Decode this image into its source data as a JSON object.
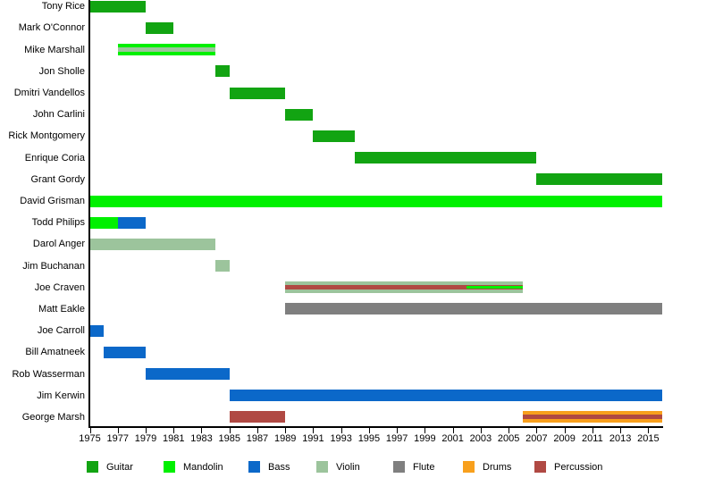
{
  "chart_data": {
    "type": "bar",
    "subtype": "timeline-gantt",
    "title": "",
    "xlabel": "",
    "ylabel": "",
    "grid": false,
    "legend_position": "bottom",
    "x_axis": {
      "min": 1975,
      "max": 2016,
      "tick_step": 2,
      "ticks": [
        1975,
        1977,
        1979,
        1981,
        1983,
        1985,
        1987,
        1989,
        1991,
        1993,
        1995,
        1997,
        1999,
        2001,
        2003,
        2005,
        2007,
        2009,
        2011,
        2013,
        2015
      ]
    },
    "instrument_colors": {
      "guitar": "#12a412",
      "mandolin": "#00f000",
      "bass": "#0b68c9",
      "violin": "#9cc49c",
      "flute": "#7f7f7f",
      "drums": "#f8a01d",
      "percussion": "#b04943"
    },
    "legend": [
      {
        "label": "Guitar",
        "instrument": "guitar"
      },
      {
        "label": "Mandolin",
        "instrument": "mandolin"
      },
      {
        "label": "Bass",
        "instrument": "bass"
      },
      {
        "label": "Violin",
        "instrument": "violin"
      },
      {
        "label": "Flute",
        "instrument": "flute"
      },
      {
        "label": "Drums",
        "instrument": "drums"
      },
      {
        "label": "Percussion",
        "instrument": "percussion"
      }
    ],
    "rows": [
      {
        "name": "Tony Rice",
        "bars": [
          {
            "start": 1975,
            "end": 1979,
            "instrument": "guitar",
            "layer": "full"
          }
        ]
      },
      {
        "name": "Mark O'Connor",
        "bars": [
          {
            "start": 1979,
            "end": 1981,
            "instrument": "guitar",
            "layer": "full"
          }
        ]
      },
      {
        "name": "Mike Marshall",
        "bars": [
          {
            "start": 1977,
            "end": 1984,
            "instrument": "mandolin",
            "layer": "full"
          },
          {
            "start": 1977,
            "end": 1984,
            "instrument": "violin",
            "layer": "mid"
          }
        ]
      },
      {
        "name": "Jon Sholle",
        "bars": [
          {
            "start": 1984,
            "end": 1985,
            "instrument": "guitar",
            "layer": "full"
          }
        ]
      },
      {
        "name": "Dmitri Vandellos",
        "bars": [
          {
            "start": 1985,
            "end": 1989,
            "instrument": "guitar",
            "layer": "full"
          }
        ]
      },
      {
        "name": "John Carlini",
        "bars": [
          {
            "start": 1989,
            "end": 1991,
            "instrument": "guitar",
            "layer": "full"
          }
        ]
      },
      {
        "name": "Rick Montgomery",
        "bars": [
          {
            "start": 1991,
            "end": 1994,
            "instrument": "guitar",
            "layer": "full"
          }
        ]
      },
      {
        "name": "Enrique Coria",
        "bars": [
          {
            "start": 1994,
            "end": 2007,
            "instrument": "guitar",
            "layer": "full"
          }
        ]
      },
      {
        "name": "Grant Gordy",
        "bars": [
          {
            "start": 2007,
            "end": 2016,
            "instrument": "guitar",
            "layer": "full"
          }
        ]
      },
      {
        "name": "David Grisman",
        "bars": [
          {
            "start": 1975,
            "end": 2016,
            "instrument": "mandolin",
            "layer": "full"
          }
        ]
      },
      {
        "name": "Todd Philips",
        "bars": [
          {
            "start": 1975,
            "end": 1977,
            "instrument": "mandolin",
            "layer": "full"
          },
          {
            "start": 1977,
            "end": 1979,
            "instrument": "bass",
            "layer": "full"
          }
        ]
      },
      {
        "name": "Darol Anger",
        "bars": [
          {
            "start": 1975,
            "end": 1984,
            "instrument": "violin",
            "layer": "full"
          }
        ]
      },
      {
        "name": "Jim Buchanan",
        "bars": [
          {
            "start": 1984,
            "end": 1985,
            "instrument": "violin",
            "layer": "full"
          }
        ]
      },
      {
        "name": "Joe Craven",
        "bars": [
          {
            "start": 1989,
            "end": 2006,
            "instrument": "violin",
            "layer": "full"
          },
          {
            "start": 1989,
            "end": 2006,
            "instrument": "percussion",
            "layer": "mid"
          },
          {
            "start": 2002,
            "end": 2006,
            "instrument": "mandolin",
            "layer": "inner"
          }
        ]
      },
      {
        "name": "Matt Eakle",
        "bars": [
          {
            "start": 1989,
            "end": 2016,
            "instrument": "flute",
            "layer": "full"
          }
        ]
      },
      {
        "name": "Joe Carroll",
        "bars": [
          {
            "start": 1975,
            "end": 1976,
            "instrument": "bass",
            "layer": "full"
          }
        ]
      },
      {
        "name": "Bill Amatneek",
        "bars": [
          {
            "start": 1976,
            "end": 1979,
            "instrument": "bass",
            "layer": "full"
          }
        ]
      },
      {
        "name": "Rob Wasserman",
        "bars": [
          {
            "start": 1979,
            "end": 1985,
            "instrument": "bass",
            "layer": "full"
          }
        ]
      },
      {
        "name": "Jim Kerwin",
        "bars": [
          {
            "start": 1985,
            "end": 2016,
            "instrument": "bass",
            "layer": "full"
          }
        ]
      },
      {
        "name": "George Marsh",
        "bars": [
          {
            "start": 1985,
            "end": 1989,
            "instrument": "percussion",
            "layer": "full"
          },
          {
            "start": 2006,
            "end": 2016,
            "instrument": "drums",
            "layer": "full"
          },
          {
            "start": 2006,
            "end": 2016,
            "instrument": "percussion",
            "layer": "mid"
          }
        ]
      }
    ]
  }
}
